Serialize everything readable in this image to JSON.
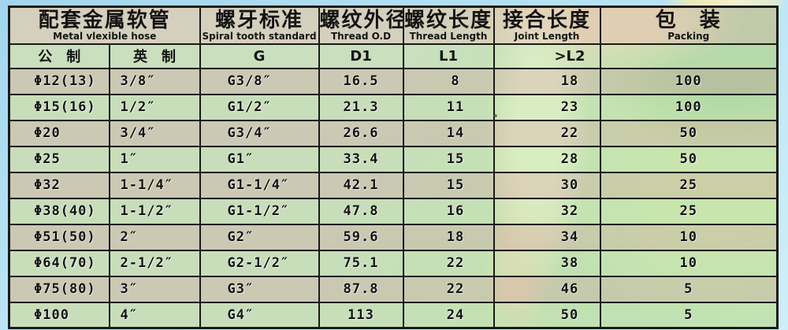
{
  "table": {
    "headers": [
      {
        "zh": "配套金属软管",
        "en": "Metal vlexible hose"
      },
      {
        "zh": "螺牙标准",
        "en": "Spiral tooth standard"
      },
      {
        "zh": "螺纹外径",
        "en": "Thread O.D"
      },
      {
        "zh": "螺纹长度",
        "en": "Thread Length"
      },
      {
        "zh": "接合长度",
        "en": "Joint Length"
      },
      {
        "zh": "包　装",
        "en": "Packing"
      }
    ],
    "subheaders": [
      "公　制",
      "英　制",
      "G",
      "D1",
      "L1",
      ">L2",
      ""
    ],
    "rows": [
      [
        "Φ12(13)",
        "3/8″",
        "G3/8″",
        "16.5",
        "8",
        "18",
        "100"
      ],
      [
        "Φ15(16)",
        "1/2″",
        "G1/2″",
        "21.3",
        "11",
        "23",
        "100"
      ],
      [
        "Φ20",
        "3/4″",
        "G3/4″",
        "26.6",
        "14",
        "22",
        "50"
      ],
      [
        "Φ25",
        "1″",
        "G1″",
        "33.4",
        "15",
        "28",
        "50"
      ],
      [
        "Φ32",
        "1-1/4″",
        "G1-1/4″",
        "42.1",
        "15",
        "30",
        "25"
      ],
      [
        "Φ38(40)",
        "1-1/2″",
        "G1-1/2″",
        "47.8",
        "16",
        "32",
        "25"
      ],
      [
        "Φ51(50)",
        "2″",
        "G2″",
        "59.6",
        "18",
        "34",
        "10"
      ],
      [
        "Φ64(70)",
        "2-1/2″",
        "G2-1/2″",
        "75.1",
        "22",
        "38",
        "10"
      ],
      [
        "Φ75(80)",
        "3″",
        "G3″",
        "87.8",
        "22",
        "46",
        "5"
      ],
      [
        "Φ100",
        "4″",
        "G4″",
        "113",
        "24",
        "50",
        "5"
      ]
    ],
    "colors": {
      "row_tan": "#c9c6b0",
      "row_green": "#c3e8b9",
      "header_tan": "#d5d2bc",
      "header_green": "#c7e8be",
      "border": "#1a1a1a",
      "page_blue": "#b2dff2",
      "photo_peach": "#f5c89f"
    }
  }
}
